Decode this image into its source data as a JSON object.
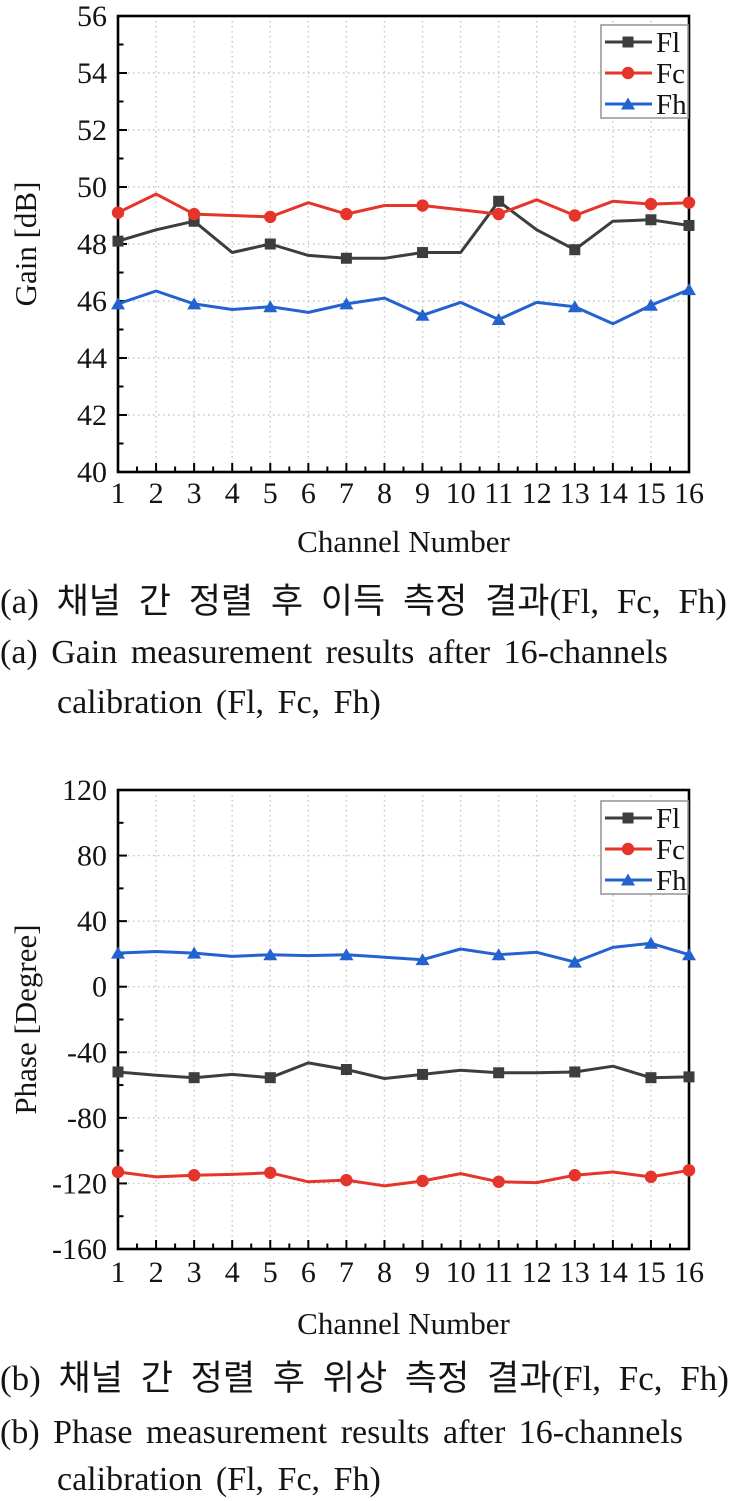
{
  "page": {
    "background": "#ffffff"
  },
  "colors": {
    "Fl": "#3d3d3d",
    "Fc": "#e5352b",
    "Fh": "#2362cf",
    "grid": "#c6c6c6",
    "axis": "#000000",
    "legend_border": "#999999",
    "text": "#141414"
  },
  "captions": {
    "a": {
      "korean": "(a) 채널 간 정렬 후 이득 측정 결과(Fl, Fc, Fh)",
      "english_line1": "(a) Gain measurement results after 16-channels",
      "english_line2": "calibration (Fl, Fc, Fh)"
    },
    "b": {
      "korean": "(b) 채널 간 정렬 후 위상 측정 결과(Fl, Fc, Fh)",
      "english_line1": "(b) Phase measurement results after 16-channels",
      "english_line2": "calibration (Fl, Fc, Fh)"
    }
  },
  "chart_data": [
    {
      "id": "gain",
      "type": "line",
      "title": "",
      "xlabel": "Channel Number",
      "ylabel": "Gain [dB]",
      "x": [
        1,
        2,
        3,
        4,
        5,
        6,
        7,
        8,
        9,
        10,
        11,
        12,
        13,
        14,
        15,
        16
      ],
      "xticks": [
        "1",
        "2",
        "3",
        "4",
        "5",
        "6",
        "7",
        "8",
        "9",
        "10",
        "11",
        "12",
        "13",
        "14",
        "15",
        "16"
      ],
      "xlim": [
        1,
        16
      ],
      "ylim": [
        40,
        56
      ],
      "yticks": [
        40,
        42,
        44,
        46,
        48,
        50,
        52,
        54,
        56
      ],
      "ytick_minor_step": 1,
      "grid": true,
      "legend_position": "top-right",
      "marker_channels": [
        1,
        3,
        5,
        7,
        9,
        11,
        13,
        15,
        16
      ],
      "series": [
        {
          "name": "Fl",
          "marker": "square",
          "color": "#3d3d3d",
          "values": [
            48.1,
            48.5,
            48.8,
            47.7,
            48.0,
            47.6,
            47.5,
            47.5,
            47.7,
            47.7,
            49.5,
            48.5,
            47.8,
            48.8,
            48.85,
            48.65
          ]
        },
        {
          "name": "Fc",
          "marker": "circle",
          "color": "#e5352b",
          "values": [
            49.1,
            49.75,
            49.05,
            49.0,
            48.95,
            49.45,
            49.05,
            49.35,
            49.35,
            49.2,
            49.05,
            49.55,
            49.0,
            49.5,
            49.4,
            49.45
          ]
        },
        {
          "name": "Fh",
          "marker": "triangle",
          "color": "#2362cf",
          "values": [
            45.9,
            46.35,
            45.9,
            45.7,
            45.8,
            45.6,
            45.9,
            46.1,
            45.5,
            45.95,
            45.35,
            45.95,
            45.8,
            45.2,
            45.85,
            46.4
          ]
        }
      ]
    },
    {
      "id": "phase",
      "type": "line",
      "title": "",
      "xlabel": "Channel Number",
      "ylabel": "Phase [Degree]",
      "x": [
        1,
        2,
        3,
        4,
        5,
        6,
        7,
        8,
        9,
        10,
        11,
        12,
        13,
        14,
        15,
        16
      ],
      "xticks": [
        "1",
        "2",
        "3",
        "4",
        "5",
        "6",
        "7",
        "8",
        "9",
        "10",
        "11",
        "12",
        "13",
        "14",
        "15",
        "16"
      ],
      "xlim": [
        1,
        16
      ],
      "ylim": [
        -160,
        120
      ],
      "yticks": [
        -160,
        -120,
        -80,
        -40,
        0,
        40,
        80,
        120
      ],
      "ytick_minor_step": 20,
      "grid": true,
      "legend_position": "top-right",
      "marker_channels": [
        1,
        3,
        5,
        7,
        9,
        11,
        13,
        15,
        16
      ],
      "series": [
        {
          "name": "Fl",
          "marker": "square",
          "color": "#3d3d3d",
          "values": [
            -52,
            -54,
            -55.5,
            -53.5,
            -55.5,
            -46.5,
            -50.5,
            -56,
            -53.5,
            -51,
            -52.5,
            -52.5,
            -52,
            -48.5,
            -55.5,
            -55
          ]
        },
        {
          "name": "Fc",
          "marker": "circle",
          "color": "#e5352b",
          "values": [
            -113,
            -116,
            -115,
            -114.5,
            -113.5,
            -119,
            -118,
            -121.5,
            -118.5,
            -114,
            -119,
            -119.5,
            -115,
            -113,
            -116,
            -112
          ]
        },
        {
          "name": "Fh",
          "marker": "triangle",
          "color": "#2362cf",
          "values": [
            20.5,
            21.5,
            20.5,
            18.5,
            19.5,
            19,
            19.5,
            18,
            16.5,
            23,
            19.5,
            21,
            15,
            24,
            26.5,
            19.5
          ]
        }
      ]
    }
  ]
}
